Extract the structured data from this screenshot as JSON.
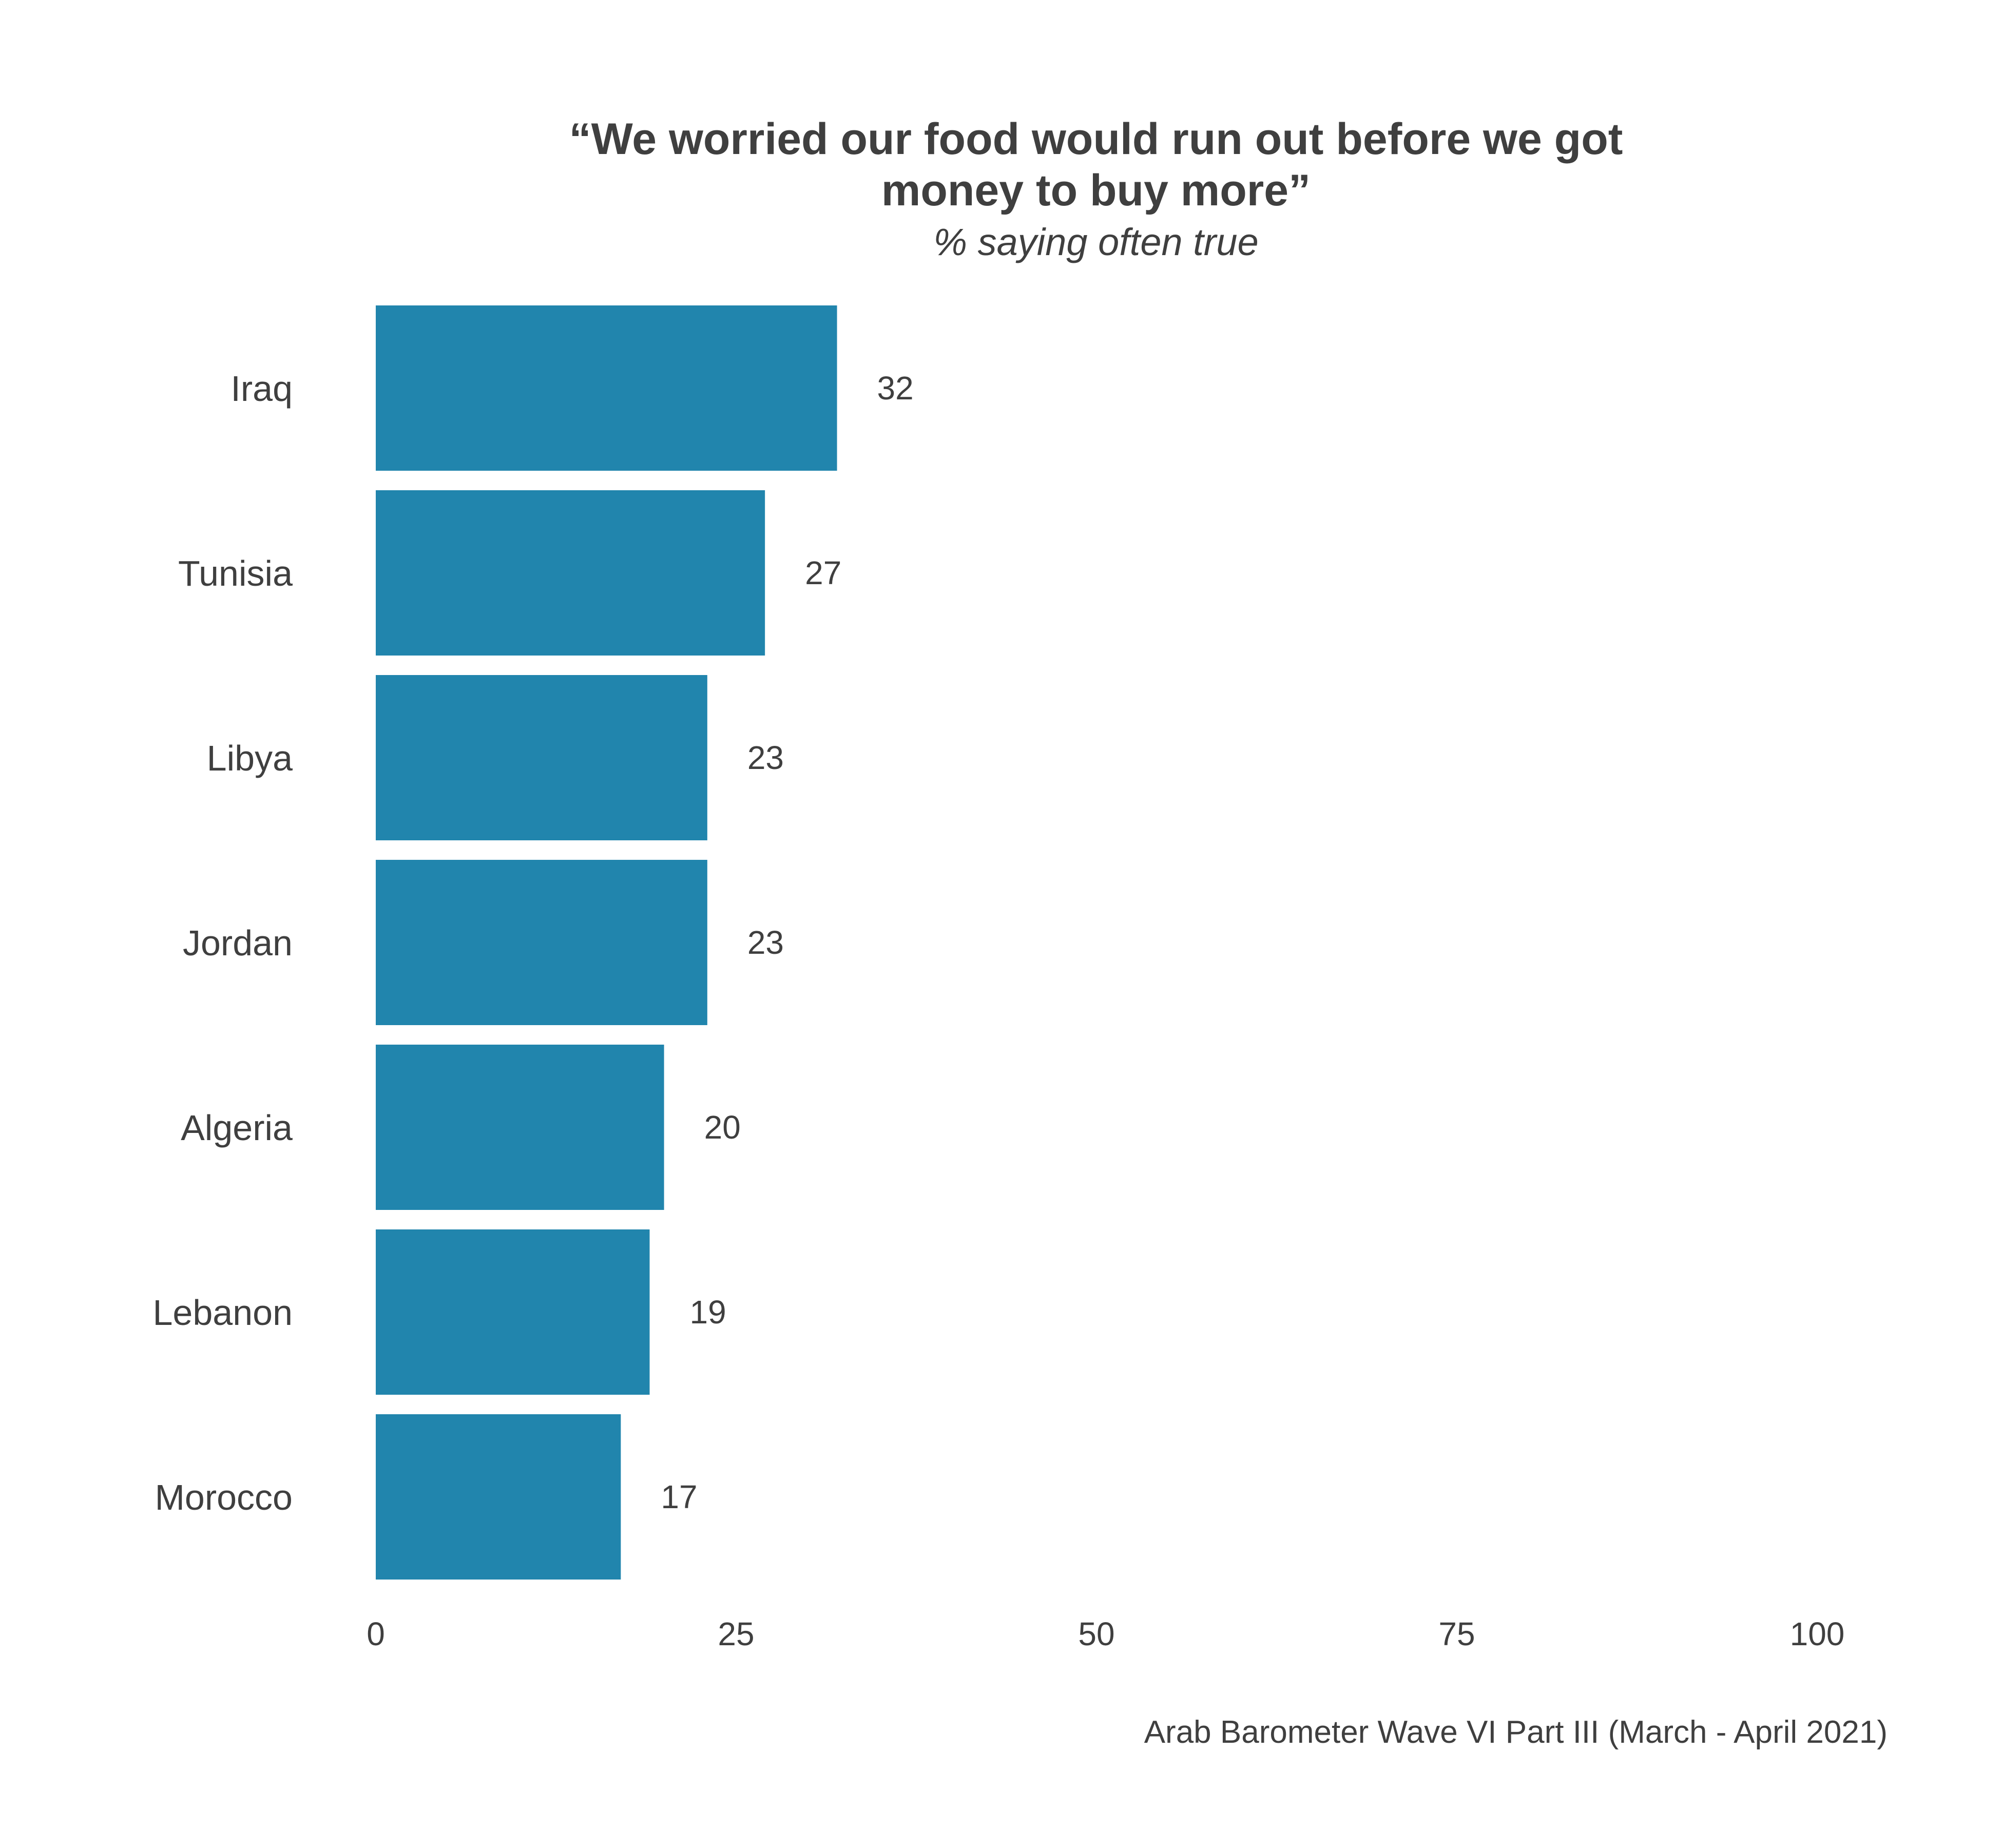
{
  "chart_data": {
    "type": "bar",
    "orientation": "horizontal",
    "title_lines": [
      "“We worried our food would run out before we got",
      "money to buy more”"
    ],
    "subtitle": "% saying often true",
    "caption": "Arab Barometer Wave VI Part III (March - April 2021)",
    "categories": [
      "Iraq",
      "Tunisia",
      "Libya",
      "Jordan",
      "Algeria",
      "Lebanon",
      "Morocco"
    ],
    "values": [
      32,
      27,
      23,
      23,
      20,
      19,
      17
    ],
    "xlim": [
      0,
      100
    ],
    "xticks": [
      "0",
      "25",
      "50",
      "75",
      "100"
    ],
    "grid": false,
    "bar_color": "#2185ad"
  }
}
